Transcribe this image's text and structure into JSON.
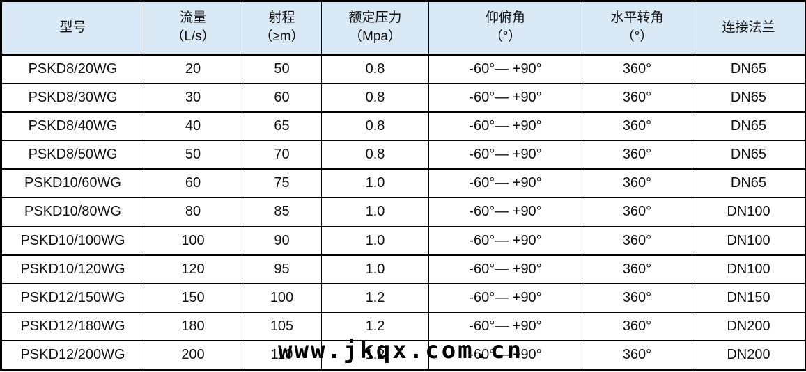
{
  "page": {
    "background_color": "#ffffff",
    "text_color": "#111111"
  },
  "table": {
    "header_background": "#d9e9f5",
    "border_color": "#000000",
    "columns": [
      {
        "title": "型号",
        "sub": ""
      },
      {
        "title": "流量",
        "sub": "（L/s）"
      },
      {
        "title": "射程",
        "sub": "（≥m）"
      },
      {
        "title": "额定压力",
        "sub": "（Mpa）"
      },
      {
        "title": "仰俯角",
        "sub": "（°）"
      },
      {
        "title": "水平转角",
        "sub": "（°）"
      },
      {
        "title": "连接法兰",
        "sub": ""
      }
    ],
    "rows": [
      [
        "PSKD8/20WG",
        "20",
        "50",
        "0.8",
        "-60°— +90°",
        "360°",
        "DN65"
      ],
      [
        "PSKD8/30WG",
        "30",
        "60",
        "0.8",
        "-60°— +90°",
        "360°",
        "DN65"
      ],
      [
        "PSKD8/40WG",
        "40",
        "65",
        "0.8",
        "-60°— +90°",
        "360°",
        "DN65"
      ],
      [
        "PSKD8/50WG",
        "50",
        "70",
        "0.8",
        "-60°— +90°",
        "360°",
        "DN65"
      ],
      [
        "PSKD10/60WG",
        "60",
        "75",
        "1.0",
        "-60°— +90°",
        "360°",
        "DN65"
      ],
      [
        "PSKD10/80WG",
        "80",
        "85",
        "1.0",
        "-60°— +90°",
        "360°",
        "DN100"
      ],
      [
        "PSKD10/100WG",
        "100",
        "90",
        "1.0",
        "-60°— +90°",
        "360°",
        "DN100"
      ],
      [
        "PSKD10/120WG",
        "120",
        "95",
        "1.0",
        "-60°— +90°",
        "360°",
        "DN100"
      ],
      [
        "PSKD12/150WG",
        "150",
        "100",
        "1.2",
        "-60°— +90°",
        "360°",
        "DN150"
      ],
      [
        "PSKD12/180WG",
        "180",
        "105",
        "1.2",
        "-60°— +90°",
        "360°",
        "DN200"
      ],
      [
        "PSKD12/200WG",
        "200",
        "110",
        "1.2",
        "-60°— +90°",
        "360°",
        "DN200"
      ]
    ]
  },
  "watermark": {
    "text": "www.jkqx.com.cn"
  }
}
